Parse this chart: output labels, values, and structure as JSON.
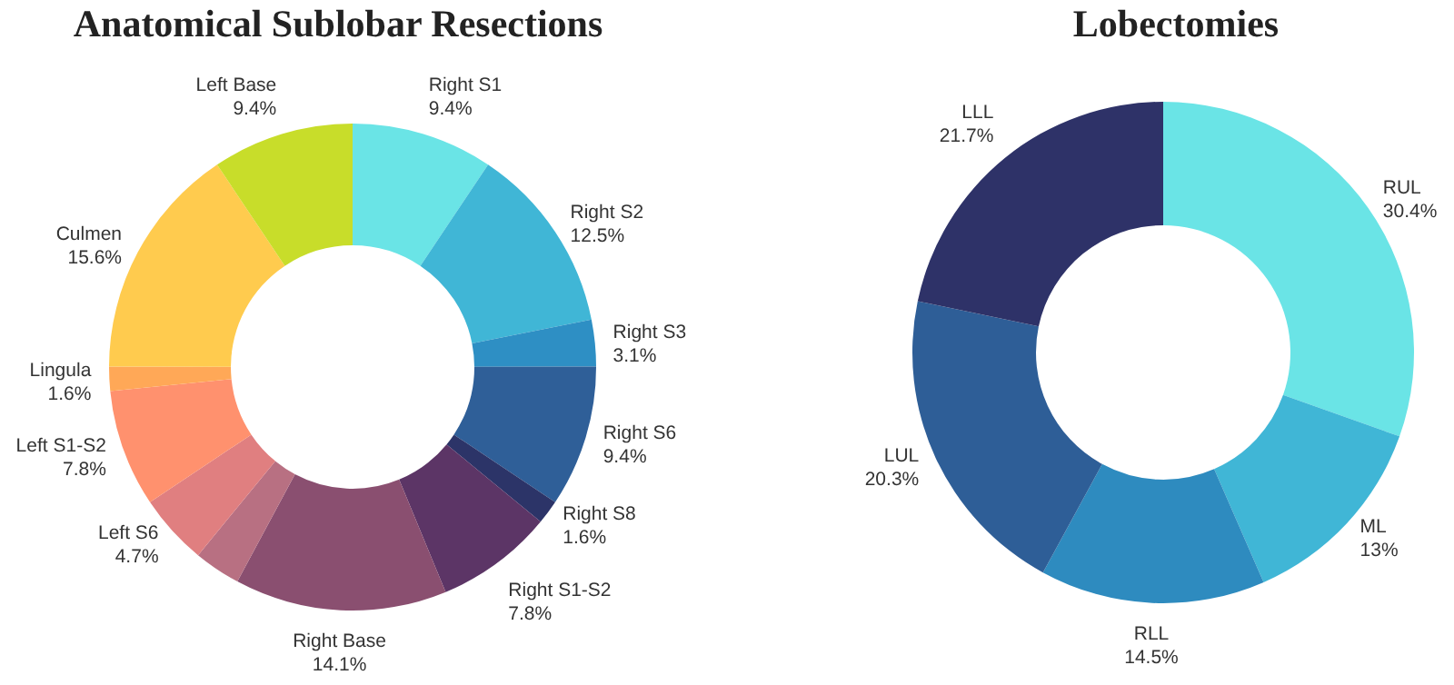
{
  "chart_data": [
    {
      "type": "donut",
      "title": "Anatomical Sublobar Resections",
      "categories": [
        "Right S1",
        "Right S2",
        "Right S3",
        "Right S6",
        "Right S8",
        "Right S1-S2",
        "Right Base",
        null,
        "Left S6",
        "Left S1-S2",
        "Lingula",
        "Culmen",
        "Left Base"
      ],
      "values": [
        9.4,
        12.5,
        3.1,
        9.4,
        1.6,
        7.8,
        14.1,
        3.1,
        4.7,
        7.8,
        1.6,
        15.6,
        9.4
      ],
      "value_labels": [
        "9.4%",
        "12.5%",
        "3.1%",
        "9.4%",
        "1.6%",
        "7.8%",
        "14.1%",
        null,
        "4.7%",
        "7.8%",
        "1.6%",
        "15.6%",
        "9.4%"
      ],
      "colors": [
        "#6ae4e6",
        "#40b6d6",
        "#2e8fc4",
        "#2f5f98",
        "#2c3468",
        "#5c3566",
        "#8a4f70",
        "#b87082",
        "#e07f80",
        "#ff916e",
        "#ffa857",
        "#ffcb4e",
        "#c8dd2a"
      ]
    },
    {
      "type": "donut",
      "title": "Lobectomies",
      "categories": [
        "RUL",
        "ML",
        "RLL",
        "LUL",
        "LLL"
      ],
      "values": [
        30.4,
        13,
        14.5,
        20.3,
        21.7
      ],
      "value_labels": [
        "30.4%",
        "13%",
        "14.5%",
        "20.3%",
        "21.7%"
      ],
      "colors": [
        "#6ae4e6",
        "#40b6d6",
        "#2e8bbf",
        "#2e5e97",
        "#2e3268"
      ]
    }
  ]
}
